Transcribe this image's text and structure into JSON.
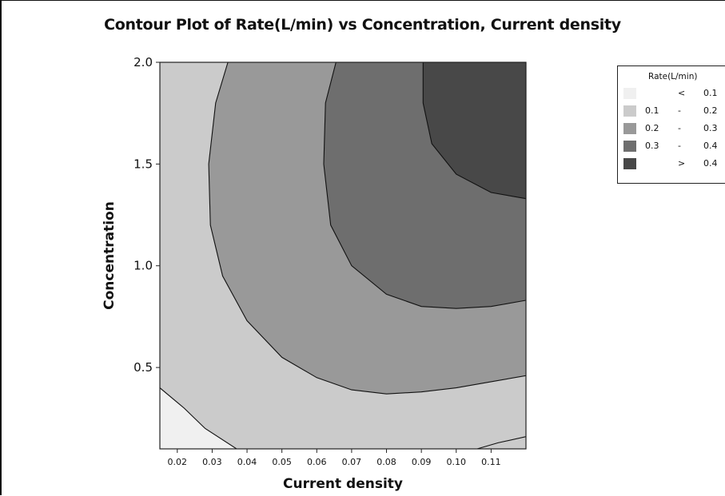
{
  "chart_data": {
    "type": "contour",
    "title": "Contour Plot of Rate(L/min) vs Concentration, Current density",
    "xlabel": "Current density",
    "ylabel": "Concentration",
    "xlim": [
      0.015,
      0.12
    ],
    "ylim": [
      0.1,
      2.0
    ],
    "xticks": [
      "0.02",
      "0.03",
      "0.04",
      "0.05",
      "0.06",
      "0.07",
      "0.08",
      "0.09",
      "0.10",
      "0.11"
    ],
    "yticks": [
      "0.5",
      "1.0",
      "1.5",
      "2.0"
    ],
    "legend": {
      "title": "Rate(L/min)",
      "placement": "top-right outside",
      "entries": [
        {
          "lo": "",
          "sep": "<",
          "hi": "0.1",
          "color": "#f0f0f0"
        },
        {
          "lo": "0.1",
          "sep": "-",
          "hi": "0.2",
          "color": "#cbcbcb"
        },
        {
          "lo": "0.2",
          "sep": "-",
          "hi": "0.3",
          "color": "#999999"
        },
        {
          "lo": "0.3",
          "sep": "-",
          "hi": "0.4",
          "color": "#6e6e6e"
        },
        {
          "lo": "",
          "sep": ">",
          "hi": "0.4",
          "color": "#484848"
        }
      ]
    },
    "contours": [
      {
        "level": 0.1,
        "points": [
          [
            0.015,
            0.4
          ],
          [
            0.022,
            0.3
          ],
          [
            0.028,
            0.2
          ],
          [
            0.037,
            0.1
          ]
        ]
      },
      {
        "level": 0.1,
        "points": [
          [
            0.106,
            0.1
          ],
          [
            0.112,
            0.13
          ],
          [
            0.12,
            0.16
          ]
        ]
      },
      {
        "level": 0.2,
        "points": [
          [
            0.0345,
            2.0
          ],
          [
            0.031,
            1.8
          ],
          [
            0.029,
            1.5
          ],
          [
            0.0295,
            1.2
          ],
          [
            0.033,
            0.95
          ],
          [
            0.04,
            0.73
          ],
          [
            0.05,
            0.55
          ],
          [
            0.06,
            0.45
          ],
          [
            0.07,
            0.39
          ],
          [
            0.08,
            0.37
          ],
          [
            0.09,
            0.38
          ],
          [
            0.1,
            0.4
          ],
          [
            0.11,
            0.43
          ],
          [
            0.12,
            0.46
          ]
        ]
      },
      {
        "level": 0.3,
        "points": [
          [
            0.0655,
            2.0
          ],
          [
            0.0625,
            1.8
          ],
          [
            0.062,
            1.5
          ],
          [
            0.064,
            1.2
          ],
          [
            0.07,
            1.0
          ],
          [
            0.08,
            0.86
          ],
          [
            0.09,
            0.8
          ],
          [
            0.1,
            0.79
          ],
          [
            0.11,
            0.8
          ],
          [
            0.12,
            0.83
          ]
        ]
      },
      {
        "level": 0.4,
        "points": [
          [
            0.0905,
            2.0
          ],
          [
            0.0905,
            1.8
          ],
          [
            0.093,
            1.6
          ],
          [
            0.1,
            1.45
          ],
          [
            0.11,
            1.36
          ],
          [
            0.12,
            1.33
          ]
        ]
      }
    ]
  }
}
